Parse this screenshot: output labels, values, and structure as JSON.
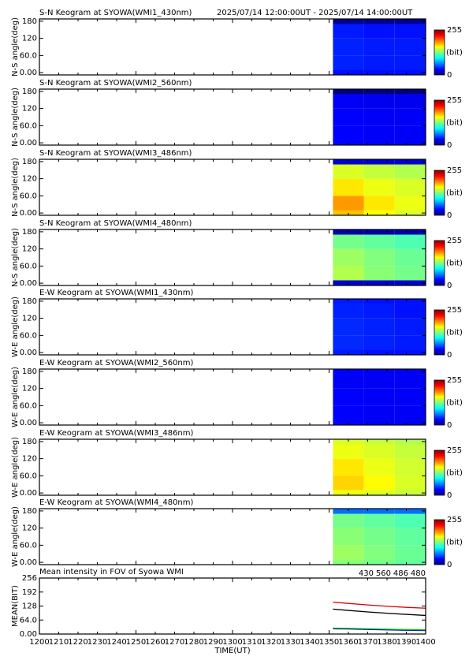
{
  "chart_data": [
    {
      "type": "heatmap",
      "title": "S-N Keogram at SYOWA(WMI1_430nm)",
      "time_range": "2025/07/14 12:00:00UT - 2025/07/14 14:00:00UT",
      "ylabel": "N-S angle(deg)",
      "xlim": [
        1200,
        1400
      ],
      "xticks": [
        1200,
        1210,
        1220,
        1230,
        1240,
        1250,
        1260,
        1270,
        1280,
        1290,
        1300,
        1310,
        1320,
        1330,
        1340,
        1350,
        1360,
        1370,
        1380,
        1390,
        1400
      ],
      "ylim": [
        -8,
        188
      ],
      "yticks": [
        {
          "value": 0,
          "label": "0.00"
        },
        {
          "value": 60,
          "label": "60.0"
        },
        120,
        180
      ],
      "x_edges": [
        1352,
        1368,
        1384,
        1400
      ],
      "y_edges": [
        0,
        10,
        60,
        120,
        170,
        188
      ],
      "values": [
        [
          35,
          35,
          35
        ],
        [
          40,
          38,
          38
        ],
        [
          40,
          38,
          38
        ],
        [
          38,
          36,
          36
        ],
        [
          5,
          5,
          5
        ]
      ],
      "clim": [
        0,
        255
      ],
      "cticks": [
        0,
        255
      ],
      "clabel": "(bit)"
    },
    {
      "type": "heatmap",
      "title": "S-N Keogram at SYOWA(WMI2_560nm)",
      "ylabel": "N-S angle(deg)",
      "xlim": [
        1200,
        1400
      ],
      "xticks": [
        1200,
        1210,
        1220,
        1230,
        1240,
        1250,
        1260,
        1270,
        1280,
        1290,
        1300,
        1310,
        1320,
        1330,
        1340,
        1350,
        1360,
        1370,
        1380,
        1390,
        1400
      ],
      "ylim": [
        -8,
        188
      ],
      "yticks": [
        {
          "value": 0,
          "label": "0.00"
        },
        {
          "value": 60,
          "label": "60.0"
        },
        120,
        180
      ],
      "x_edges": [
        1352,
        1368,
        1384,
        1400
      ],
      "y_edges": [
        0,
        10,
        60,
        120,
        170,
        188
      ],
      "values": [
        [
          30,
          30,
          30
        ],
        [
          32,
          30,
          30
        ],
        [
          32,
          30,
          30
        ],
        [
          30,
          28,
          28
        ],
        [
          0,
          0,
          0
        ]
      ],
      "clim": [
        0,
        255
      ],
      "cticks": [
        0,
        255
      ],
      "clabel": "(bit)"
    },
    {
      "type": "heatmap",
      "title": "S-N Keogram at SYOWA(WMI3_486nm)",
      "ylabel": "N-S angle(deg)",
      "xlim": [
        1200,
        1400
      ],
      "xticks": [
        1200,
        1210,
        1220,
        1230,
        1240,
        1250,
        1260,
        1270,
        1280,
        1290,
        1300,
        1310,
        1320,
        1330,
        1340,
        1350,
        1360,
        1370,
        1380,
        1390,
        1400
      ],
      "ylim": [
        -8,
        188
      ],
      "yticks": [
        {
          "value": 0,
          "label": "0.00"
        },
        {
          "value": 60,
          "label": "60.0"
        },
        120,
        180
      ],
      "x_edges": [
        1352,
        1368,
        1384,
        1400
      ],
      "y_edges": [
        0,
        10,
        60,
        120,
        170,
        188
      ],
      "values": [
        [
          175,
          160,
          150
        ],
        [
          185,
          165,
          155
        ],
        [
          165,
          155,
          150
        ],
        [
          150,
          145,
          140
        ],
        [
          20,
          20,
          20
        ]
      ],
      "clim": [
        0,
        255
      ],
      "cticks": [
        0,
        255
      ],
      "clabel": "(bit)"
    },
    {
      "type": "heatmap",
      "title": "S-N Keogram at SYOWA(WMI4_480nm)",
      "ylabel": "N-S angle(deg)",
      "xlim": [
        1200,
        1400
      ],
      "xticks": [
        1200,
        1210,
        1220,
        1230,
        1240,
        1250,
        1260,
        1270,
        1280,
        1290,
        1300,
        1310,
        1320,
        1330,
        1340,
        1350,
        1360,
        1370,
        1380,
        1390,
        1400
      ],
      "ylim": [
        -8,
        188
      ],
      "yticks": [
        {
          "value": 0,
          "label": "0.00"
        },
        {
          "value": 60,
          "label": "60.0"
        },
        120,
        180
      ],
      "x_edges": [
        1352,
        1368,
        1384,
        1400
      ],
      "y_edges": [
        0,
        10,
        60,
        120,
        170,
        188
      ],
      "values": [
        [
          20,
          20,
          20
        ],
        [
          140,
          130,
          125
        ],
        [
          135,
          128,
          122
        ],
        [
          125,
          120,
          115
        ],
        [
          10,
          10,
          10
        ]
      ],
      "clim": [
        0,
        255
      ],
      "cticks": [
        0,
        255
      ],
      "clabel": "(bit)"
    },
    {
      "type": "heatmap",
      "title": "E-W Keogram at SYOWA(WMI1_430nm)",
      "ylabel": "W-E angle(deg)",
      "xlim": [
        1200,
        1400
      ],
      "xticks": [
        1200,
        1210,
        1220,
        1230,
        1240,
        1250,
        1260,
        1270,
        1280,
        1290,
        1300,
        1310,
        1320,
        1330,
        1340,
        1350,
        1360,
        1370,
        1380,
        1390,
        1400
      ],
      "ylim": [
        -8,
        188
      ],
      "yticks": [
        {
          "value": 0,
          "label": "0.00"
        },
        {
          "value": 60,
          "label": "60.0"
        },
        120,
        180
      ],
      "x_edges": [
        1352,
        1368,
        1384,
        1400
      ],
      "y_edges": [
        0,
        10,
        60,
        120,
        170,
        188
      ],
      "values": [
        [
          38,
          36,
          36
        ],
        [
          42,
          40,
          38
        ],
        [
          42,
          40,
          38
        ],
        [
          40,
          38,
          36
        ],
        [
          38,
          36,
          36
        ]
      ],
      "clim": [
        0,
        255
      ],
      "cticks": [
        0,
        255
      ],
      "clabel": "(bit)"
    },
    {
      "type": "heatmap",
      "title": "E-W Keogram at SYOWA(WMI2_560nm)",
      "ylabel": "W-E angle(deg)",
      "xlim": [
        1200,
        1400
      ],
      "xticks": [
        1200,
        1210,
        1220,
        1230,
        1240,
        1250,
        1260,
        1270,
        1280,
        1290,
        1300,
        1310,
        1320,
        1330,
        1340,
        1350,
        1360,
        1370,
        1380,
        1390,
        1400
      ],
      "ylim": [
        -8,
        188
      ],
      "yticks": [
        {
          "value": 0,
          "label": "0.00"
        },
        {
          "value": 60,
          "label": "60.0"
        },
        120,
        180
      ],
      "x_edges": [
        1352,
        1368,
        1384,
        1400
      ],
      "y_edges": [
        0,
        10,
        60,
        120,
        170,
        188
      ],
      "values": [
        [
          30,
          30,
          30
        ],
        [
          32,
          30,
          30
        ],
        [
          32,
          30,
          30
        ],
        [
          30,
          30,
          30
        ],
        [
          30,
          28,
          28
        ]
      ],
      "clim": [
        0,
        255
      ],
      "cticks": [
        0,
        255
      ],
      "clabel": "(bit)"
    },
    {
      "type": "heatmap",
      "title": "E-W Keogram at SYOWA(WMI3_486nm)",
      "ylabel": "W-E angle(deg)",
      "xlim": [
        1200,
        1400
      ],
      "xticks": [
        1200,
        1210,
        1220,
        1230,
        1240,
        1250,
        1260,
        1270,
        1280,
        1290,
        1300,
        1310,
        1320,
        1330,
        1340,
        1350,
        1360,
        1370,
        1380,
        1390,
        1400
      ],
      "ylim": [
        -8,
        188
      ],
      "yticks": [
        {
          "value": 0,
          "label": "0.00"
        },
        {
          "value": 60,
          "label": "60.0"
        },
        120,
        180
      ],
      "x_edges": [
        1352,
        1368,
        1384,
        1400
      ],
      "y_edges": [
        0,
        10,
        60,
        120,
        170,
        188
      ],
      "values": [
        [
          155,
          150,
          145
        ],
        [
          170,
          160,
          150
        ],
        [
          165,
          155,
          148
        ],
        [
          155,
          150,
          145
        ],
        [
          150,
          145,
          140
        ]
      ],
      "clim": [
        0,
        255
      ],
      "cticks": [
        0,
        255
      ],
      "clabel": "(bit)"
    },
    {
      "type": "heatmap",
      "title": "E-W Keogram at SYOWA(WMI4_480nm)",
      "ylabel": "W-E angle(deg)",
      "xlim": [
        1200,
        1400
      ],
      "xticks": [
        1200,
        1210,
        1220,
        1230,
        1240,
        1250,
        1260,
        1270,
        1280,
        1290,
        1300,
        1310,
        1320,
        1330,
        1340,
        1350,
        1360,
        1370,
        1380,
        1390,
        1400
      ],
      "ylim": [
        -8,
        188
      ],
      "yticks": [
        {
          "value": 0,
          "label": "0.00"
        },
        {
          "value": 60,
          "label": "60.0"
        },
        120,
        180
      ],
      "x_edges": [
        1352,
        1368,
        1384,
        1400
      ],
      "y_edges": [
        0,
        10,
        60,
        120,
        170,
        188
      ],
      "values": [
        [
          130,
          125,
          120
        ],
        [
          135,
          128,
          122
        ],
        [
          130,
          125,
          120
        ],
        [
          125,
          120,
          115
        ],
        [
          60,
          60,
          60
        ]
      ],
      "clim": [
        0,
        255
      ],
      "cticks": [
        0,
        255
      ],
      "clabel": "(bit)"
    },
    {
      "type": "line",
      "title": "Mean intensity in FOV of Syowa WMI",
      "ylabel": "MEAN(BIT)",
      "xlabel": "TIME(UT)",
      "xlim": [
        1200,
        1400
      ],
      "xticks": [
        1200,
        1210,
        1220,
        1230,
        1240,
        1250,
        1260,
        1270,
        1280,
        1290,
        1300,
        1310,
        1320,
        1330,
        1340,
        1350,
        1360,
        1370,
        1380,
        1390,
        1400
      ],
      "ylim": [
        0,
        256
      ],
      "yticks": [
        {
          "value": 0,
          "label": "0.00"
        },
        {
          "value": 64,
          "label": "64.0"
        },
        128,
        192,
        256
      ],
      "x": [
        1352,
        1360,
        1370,
        1380,
        1390,
        1400
      ],
      "series": [
        {
          "name": "430",
          "color": "#0000cc",
          "values": [
            24,
            23,
            21,
            19,
            17,
            16
          ]
        },
        {
          "name": "560",
          "color": "#00bb00",
          "values": [
            27,
            26,
            24,
            22,
            20,
            19
          ]
        },
        {
          "name": "486",
          "color": "#dd0000",
          "values": [
            146,
            140,
            133,
            127,
            122,
            118
          ]
        },
        {
          "name": "480",
          "color": "#000000",
          "values": [
            114,
            108,
            101,
            95,
            90,
            85
          ]
        }
      ]
    }
  ]
}
